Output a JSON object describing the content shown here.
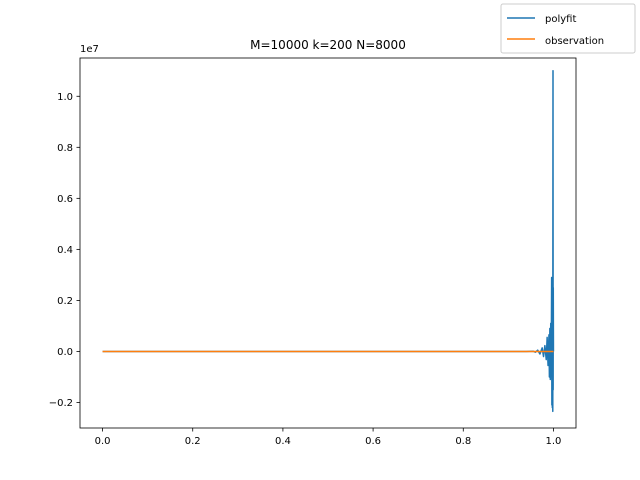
{
  "chart_data": {
    "type": "line",
    "title": "M=10000 k=200 N=8000",
    "xlabel": "",
    "ylabel": "",
    "y_offset_label": "1e7",
    "xlim": [
      -0.05,
      1.05
    ],
    "ylim": [
      -3.0,
      11.5
    ],
    "x_ticks": [
      0.0,
      0.2,
      0.4,
      0.6,
      0.8,
      1.0
    ],
    "x_tick_labels": [
      "0.0",
      "0.2",
      "0.4",
      "0.6",
      "0.8",
      "1.0"
    ],
    "y_ticks": [
      -0.2,
      0.0,
      0.2,
      0.4,
      0.6,
      0.8,
      1.0
    ],
    "y_tick_labels": [
      "−0.2",
      "0.0",
      "0.2",
      "0.4",
      "0.6",
      "0.8",
      "1.0"
    ],
    "grid": false,
    "legend_position": "top-right",
    "series": [
      {
        "name": "polyfit",
        "color": "#1f77b4",
        "x": [
          0.0,
          0.2,
          0.4,
          0.6,
          0.8,
          0.94,
          0.955,
          0.96,
          0.965,
          0.97,
          0.975,
          0.978,
          0.981,
          0.984,
          0.986,
          0.988,
          0.99,
          0.991,
          0.992,
          0.993,
          0.994,
          0.995,
          0.996,
          0.9965,
          0.997,
          0.9975,
          0.998,
          0.9985,
          0.999,
          0.9993,
          0.9996,
          1.0
        ],
        "y": [
          0.0,
          0.0,
          0.0,
          0.0,
          0.0,
          0.0,
          0.01,
          -0.03,
          0.05,
          -0.1,
          0.14,
          -0.2,
          0.23,
          -0.32,
          0.55,
          -0.55,
          0.65,
          -1.0,
          0.9,
          -1.1,
          1.1,
          -0.8,
          2.9,
          -2.1,
          1.5,
          -2.2,
          0.5,
          -2.35,
          11.0,
          -1.5,
          2.5,
          0.0
        ]
      },
      {
        "name": "observation",
        "color": "#ff7f0e",
        "x": [
          0.0,
          0.2,
          0.4,
          0.6,
          0.8,
          0.9,
          0.95,
          0.97,
          0.98,
          0.99,
          1.0
        ],
        "y": [
          0.0,
          0.0,
          0.0,
          0.0,
          0.0,
          0.0,
          0.0,
          0.0,
          0.0,
          0.0,
          0.0
        ]
      }
    ]
  }
}
